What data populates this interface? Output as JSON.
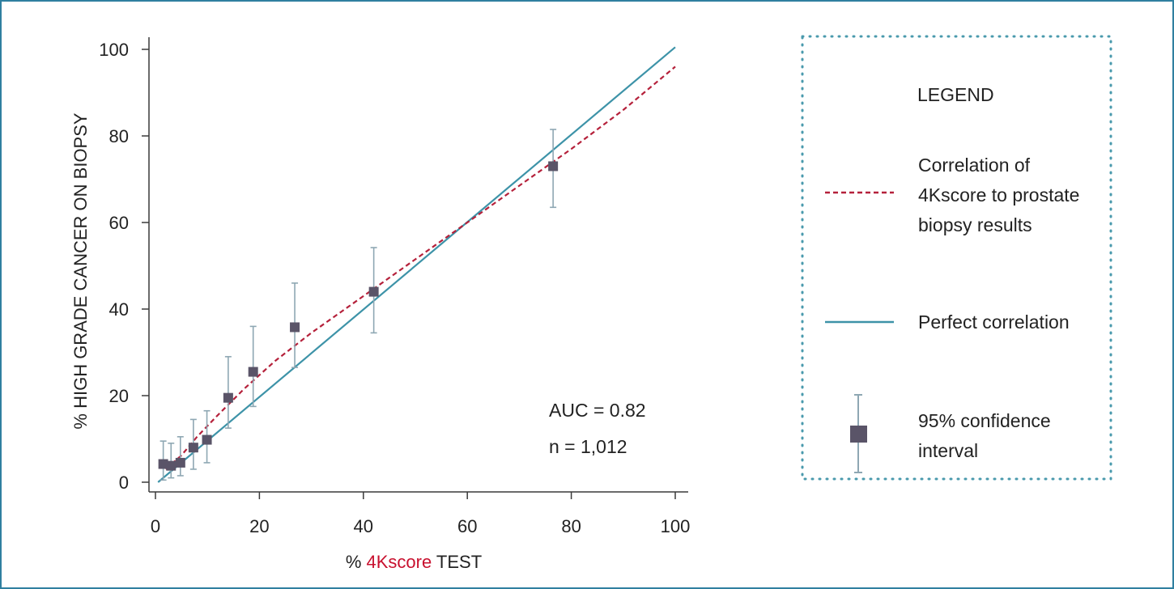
{
  "chart_data": {
    "type": "scatter",
    "xlabel_parts": [
      "% ",
      "4Kscore",
      " TEST"
    ],
    "ylabel": "% HIGH GRADE CANCER ON BIOPSY",
    "xlim": [
      0,
      100
    ],
    "ylim": [
      0,
      100
    ],
    "x_ticks": [
      0,
      20,
      40,
      60,
      80,
      100
    ],
    "y_ticks": [
      0,
      20,
      40,
      60,
      80,
      100
    ],
    "grid": false,
    "points": [
      {
        "x": 1.5,
        "y": 4.2,
        "lo": 0.5,
        "hi": 9.5
      },
      {
        "x": 3,
        "y": 3.8,
        "lo": 1,
        "hi": 9
      },
      {
        "x": 4.8,
        "y": 4.5,
        "lo": 1.5,
        "hi": 10.5
      },
      {
        "x": 7.3,
        "y": 8,
        "lo": 3,
        "hi": 14.5
      },
      {
        "x": 9.9,
        "y": 9.8,
        "lo": 4.5,
        "hi": 16.5
      },
      {
        "x": 14,
        "y": 19.5,
        "lo": 12.5,
        "hi": 29
      },
      {
        "x": 18.8,
        "y": 25.5,
        "lo": 17.5,
        "hi": 36
      },
      {
        "x": 26.8,
        "y": 35.8,
        "lo": 26.5,
        "hi": 46
      },
      {
        "x": 42,
        "y": 44,
        "lo": 34.5,
        "hi": 54.2
      },
      {
        "x": 76.5,
        "y": 73,
        "lo": 63.5,
        "hi": 81.5
      }
    ],
    "correlation_curve": {
      "x": [
        2,
        5,
        8,
        12,
        17,
        23,
        30,
        40,
        50,
        60,
        70,
        80,
        90,
        100
      ],
      "y": [
        3,
        6.2,
        10.5,
        15.5,
        21.5,
        28,
        34.5,
        43,
        51.5,
        60,
        68.5,
        77,
        86,
        96
      ]
    },
    "perfect_line": {
      "x": [
        0.5,
        100
      ],
      "y": [
        0,
        100.5
      ]
    },
    "annotations": [
      "AUC = 0.82",
      "n = 1,012"
    ],
    "legend": {
      "title": "LEGEND",
      "entries": [
        {
          "lines": [
            "Correlation of",
            "4Kscore to prostate",
            "biopsy results"
          ]
        },
        {
          "lines": [
            "Perfect correlation"
          ]
        },
        {
          "lines": [
            "95% confidence",
            "interval"
          ]
        }
      ]
    }
  },
  "colors": {
    "frame": "#2f7fa0",
    "dashed_curve": "#b5213b",
    "perfect_line": "#3d93a8",
    "marker": "#5a5468",
    "error_bar": "#8ea7b3",
    "legend_border": "#4a9aad",
    "axis": "#3a3a3a",
    "xlabel_highlight": "#c8102e"
  }
}
